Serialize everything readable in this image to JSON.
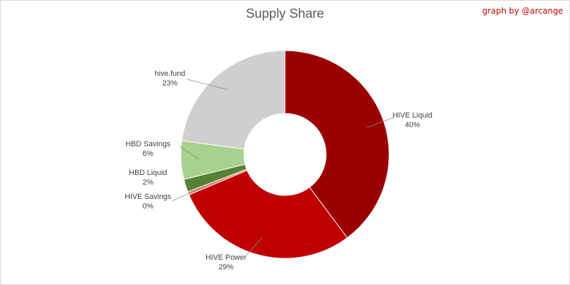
{
  "chart_data": {
    "type": "pie",
    "variant": "donut",
    "title": "Supply Share",
    "credit": "graph by @arcange",
    "slices": [
      {
        "name": "HIVE Liquid",
        "value": 40,
        "label": "40%",
        "color": "#9a0000"
      },
      {
        "name": "HIVE Power",
        "value": 29,
        "label": "29%",
        "color": "#c00000"
      },
      {
        "name": "HIVE Savings",
        "value": 0.5,
        "label": "0%",
        "color": "#e8756e"
      },
      {
        "name": "HBD Liquid",
        "value": 2,
        "label": "2%",
        "color": "#548235"
      },
      {
        "name": "HBD Savings",
        "value": 6,
        "label": "6%",
        "color": "#a9d18e"
      },
      {
        "name": "hive.fund",
        "value": 23,
        "label": "23%",
        "color": "#d0cece"
      }
    ],
    "legend": "none",
    "data_labels": "outside with leader lines"
  }
}
